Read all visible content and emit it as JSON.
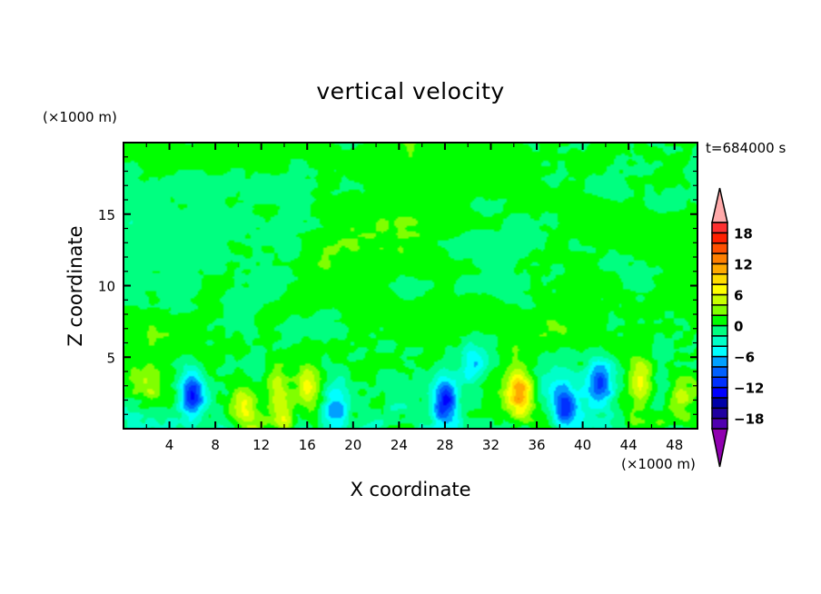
{
  "chart_data": {
    "type": "heatmap",
    "style": "filled-contour",
    "title": "vertical velocity",
    "xlabel": "X coordinate",
    "ylabel": "Z coordinate",
    "x_unit": "(×1000 m)",
    "y_unit": "(×1000 m)",
    "annotation": "t=684000 s",
    "xlim": [
      0,
      50
    ],
    "ylim": [
      0,
      20
    ],
    "x_ticks": [
      4,
      8,
      12,
      16,
      20,
      24,
      28,
      32,
      36,
      40,
      44,
      48
    ],
    "x_tick_labels": [
      "4",
      "8",
      "12",
      "16",
      "20",
      "24",
      "28",
      "32",
      "36",
      "40",
      "44",
      "48"
    ],
    "y_ticks": [
      5,
      10,
      15
    ],
    "y_tick_labels": [
      "5",
      "10",
      "15"
    ],
    "colorbar": {
      "levels": [
        -20,
        -18,
        -16,
        -14,
        -12,
        -10,
        -8,
        -6,
        -4,
        -2,
        0,
        2,
        4,
        6,
        8,
        10,
        12,
        14,
        16,
        18,
        20
      ],
      "tick_values": [
        -18,
        -12,
        -6,
        0,
        6,
        12,
        18
      ],
      "tick_labels": [
        "−18",
        "−12",
        "−6",
        "0",
        "6",
        "12",
        "18"
      ],
      "colors": [
        "#5000b0",
        "#2000a0",
        "#0000a8",
        "#0000ff",
        "#0030ff",
        "#0060ff",
        "#00a0ff",
        "#00ffff",
        "#00ffc8",
        "#00ff80",
        "#00ff00",
        "#80ff00",
        "#c8ff00",
        "#ffff00",
        "#ffdc00",
        "#ffaa00",
        "#ff8000",
        "#ff5000",
        "#ff2000",
        "#ff3030"
      ],
      "under_color": "#9000b0",
      "over_color": "#ffaaaa",
      "extend": "both",
      "placement": "right"
    },
    "features": [
      {
        "kind": "updraft",
        "x": 34.5,
        "z": 2.5,
        "w": 11
      },
      {
        "kind": "updraft",
        "x": 16,
        "z": 3,
        "w": 6.5
      },
      {
        "kind": "updraft",
        "x": 10.5,
        "z": 1.5,
        "w": 6
      },
      {
        "kind": "updraft",
        "x": 14,
        "z": 1,
        "w": 7
      },
      {
        "kind": "updraft",
        "x": 45,
        "z": 3.5,
        "w": 5
      },
      {
        "kind": "updraft",
        "x": 48.5,
        "z": 2,
        "w": 6
      },
      {
        "kind": "updraft",
        "x": 2,
        "z": 3,
        "w": 4
      },
      {
        "kind": "updraft",
        "x": 13.5,
        "z": 3.5,
        "w": 4
      },
      {
        "kind": "downdraft",
        "x": 6,
        "z": 2.5,
        "w": -12
      },
      {
        "kind": "downdraft",
        "x": 28,
        "z": 2,
        "w": -12
      },
      {
        "kind": "downdraft",
        "x": 38.5,
        "z": 1.5,
        "w": -12
      },
      {
        "kind": "downdraft",
        "x": 41.5,
        "z": 3,
        "w": -10
      },
      {
        "kind": "downdraft",
        "x": 18.5,
        "z": 2,
        "w": -8
      },
      {
        "kind": "downdraft",
        "x": 30.5,
        "z": 4.5,
        "w": -6
      }
    ]
  }
}
